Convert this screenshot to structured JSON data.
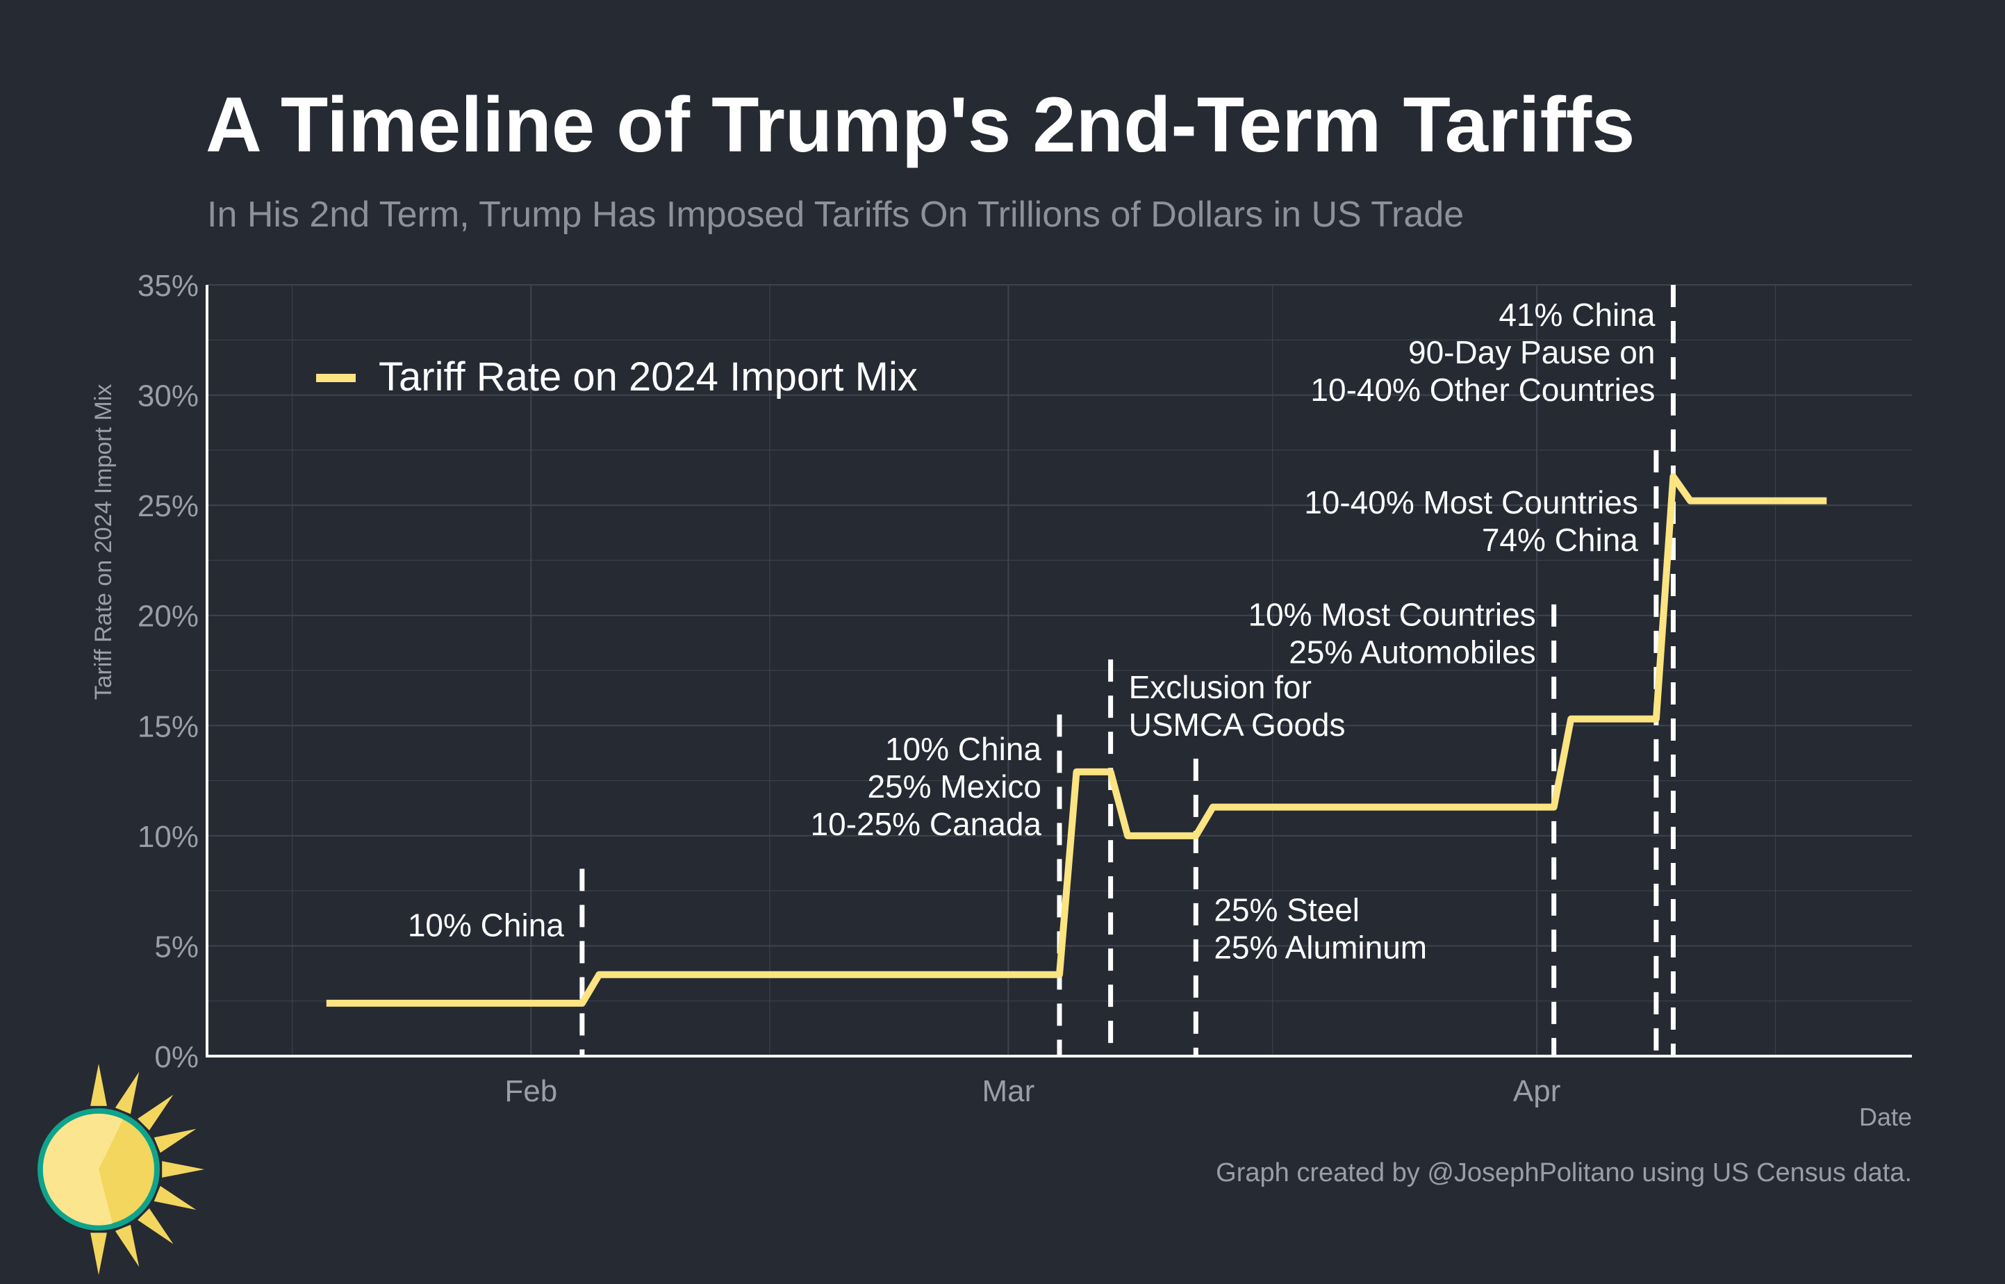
{
  "colors": {
    "background": "#262a33",
    "gridline": "#3f444f",
    "axis_line": "#ffffff",
    "tick_label": "#9a9ea8",
    "title": "#ffffff",
    "subtitle": "#8d919a",
    "series": "#fbe481",
    "annotation_text": "#ffffff",
    "event_line": "#ffffff",
    "logo_sun": "#f3d65e",
    "logo_ring": "#0fa38c"
  },
  "header": {
    "title": "A Timeline of Trump's 2nd-Term Tariffs",
    "subtitle": "In His 2nd Term, Trump Has Imposed Tariffs On Trillions of Dollars in US Trade"
  },
  "footer": {
    "credit": "Graph created by @JosephPolitano using US Census data."
  },
  "chart_data": {
    "type": "line",
    "xlabel": "Date",
    "ylabel": "Tariff Rate on 2024 Import Mix",
    "xlim": [
      "2025-01-13",
      "2025-04-23"
    ],
    "ylim": [
      0,
      35
    ],
    "y_ticks": [
      0,
      5,
      10,
      15,
      20,
      25,
      30,
      35
    ],
    "y_tick_format": "%",
    "x_ticks": [
      {
        "date": "2025-02-01",
        "label": "Feb"
      },
      {
        "date": "2025-03-01",
        "label": "Mar"
      },
      {
        "date": "2025-04-01",
        "label": "Apr"
      }
    ],
    "grid": true,
    "legend_position": "top-left",
    "series": [
      {
        "name": "Tariff Rate on 2024 Import Mix",
        "points": [
          {
            "x": "2025-01-20",
            "y": 2.4
          },
          {
            "x": "2025-02-04",
            "y": 2.4
          },
          {
            "x": "2025-02-05",
            "y": 3.7
          },
          {
            "x": "2025-03-04",
            "y": 3.7
          },
          {
            "x": "2025-03-05",
            "y": 12.9
          },
          {
            "x": "2025-03-07",
            "y": 12.9
          },
          {
            "x": "2025-03-08",
            "y": 10.0
          },
          {
            "x": "2025-03-12",
            "y": 10.0
          },
          {
            "x": "2025-03-13",
            "y": 11.3
          },
          {
            "x": "2025-04-02",
            "y": 11.3
          },
          {
            "x": "2025-04-03",
            "y": 15.3
          },
          {
            "x": "2025-04-08",
            "y": 15.3
          },
          {
            "x": "2025-04-09",
            "y": 26.3
          },
          {
            "x": "2025-04-10",
            "y": 25.2
          },
          {
            "x": "2025-04-18",
            "y": 25.2
          }
        ]
      }
    ],
    "events": [
      {
        "date": "2025-02-04",
        "y_top": 8.5,
        "label_lines": [
          "10% China"
        ],
        "label_side": "left",
        "label_y": 6.0
      },
      {
        "date": "2025-03-04",
        "y_top": 15.5,
        "label_lines": [
          "10% China",
          "25% Mexico",
          "10-25% Canada"
        ],
        "label_side": "left",
        "label_y": 14.0
      },
      {
        "date": "2025-03-07",
        "y_top": 18.0,
        "label_lines": [
          "Exclusion for",
          "USMCA Goods"
        ],
        "label_side": "right",
        "label_y": 16.8
      },
      {
        "date": "2025-03-12",
        "y_top": 13.5,
        "label_lines": [
          "25% Steel",
          "25% Aluminum"
        ],
        "label_side": "right",
        "label_y": 6.7
      },
      {
        "date": "2025-04-02",
        "y_top": 20.5,
        "label_lines": [
          "10% Most Countries",
          "25% Automobiles"
        ],
        "label_side": "left",
        "label_y": 20.1
      },
      {
        "date": "2025-04-08",
        "y_top": 27.5,
        "label_lines": [
          "10-40% Most Countries",
          "74% China"
        ],
        "label_side": "left",
        "label_y": 25.2
      },
      {
        "date": "2025-04-09",
        "y_top": 35.0,
        "label_lines": [
          "41% China",
          "90-Day Pause on",
          "10-40% Other Countries"
        ],
        "label_side": "left",
        "label_y": 33.7
      }
    ]
  }
}
